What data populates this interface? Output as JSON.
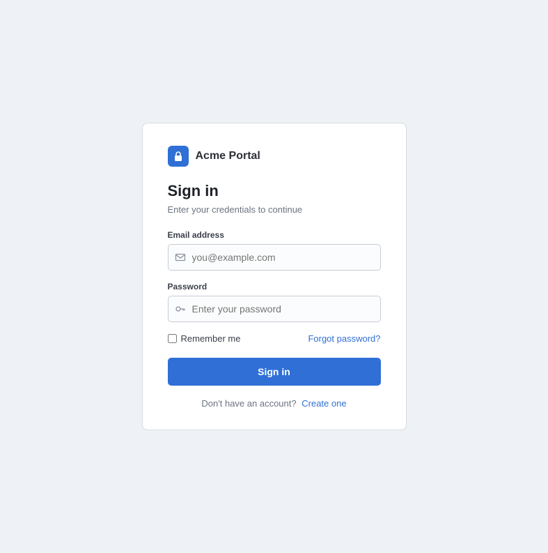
{
  "colors": {
    "accent": "#2f6fd6",
    "icon": "#8a929e"
  },
  "brand": {
    "name": "Acme Portal",
    "icon": "lock-icon"
  },
  "header": {
    "title": "Sign in",
    "subtitle": "Enter your credentials to continue"
  },
  "form": {
    "email": {
      "label": "Email address",
      "placeholder": "you@example.com",
      "value": "",
      "icon": "mail-icon"
    },
    "password": {
      "label": "Password",
      "placeholder": "Enter your password",
      "value": "",
      "icon": "key-icon"
    },
    "remember_label": "Remember me",
    "forgot_label": "Forgot password?",
    "submit_label": "Sign in"
  },
  "footer": {
    "prompt": "Don't have an account?",
    "signup_label": "Create one"
  }
}
